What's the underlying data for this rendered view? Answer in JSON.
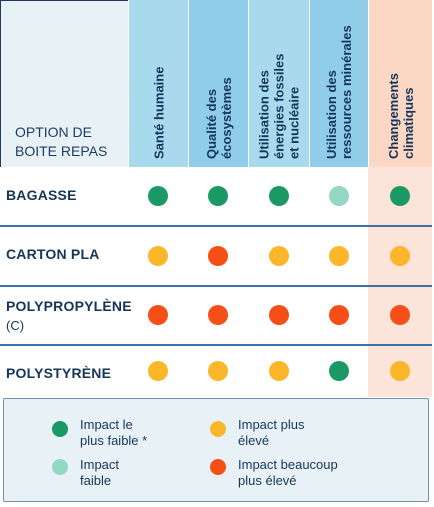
{
  "chart_data": {
    "type": "table",
    "row_header": "OPTION DE BOITE REPAS",
    "columns": [
      {
        "label": "Santé humaine",
        "color": "#a9d9ec"
      },
      {
        "label": "Qualité des écosystèmes",
        "color": "#8fcde8"
      },
      {
        "label": "Utilisation des énergies fossiles et nucléaire",
        "color": "#a9d9ec"
      },
      {
        "label": "Utilisation des ressources minérales",
        "color": "#8fcde8"
      },
      {
        "label": "Changements climatiques",
        "color": "#fcd7c4"
      }
    ],
    "rows": [
      {
        "label": "BAGASSE",
        "sub": "",
        "values": [
          "lowest",
          "lowest",
          "lowest",
          "low",
          "lowest"
        ]
      },
      {
        "label": "CARTON PLA",
        "sub": "",
        "values": [
          "higher",
          "much_higher",
          "higher",
          "higher",
          "higher"
        ]
      },
      {
        "label": "POLYPROPYLÈNE",
        "sub": "(C)",
        "values": [
          "much_higher",
          "much_higher",
          "much_higher",
          "much_higher",
          "much_higher"
        ]
      },
      {
        "label": "POLYSTYRÈNE",
        "sub": "",
        "values": [
          "higher",
          "higher",
          "higher",
          "lowest",
          "higher"
        ]
      }
    ],
    "legend": [
      {
        "key": "lowest",
        "label": "Impact le plus faible *",
        "color": "#1a9966"
      },
      {
        "key": "low",
        "label": "Impact faible",
        "color": "#94d7c3"
      },
      {
        "key": "higher",
        "label": "Impact plus élevé",
        "color": "#fbb62a"
      },
      {
        "key": "much_higher",
        "label": "Impact beaucoup plus élevé",
        "color": "#f54e16"
      }
    ]
  }
}
